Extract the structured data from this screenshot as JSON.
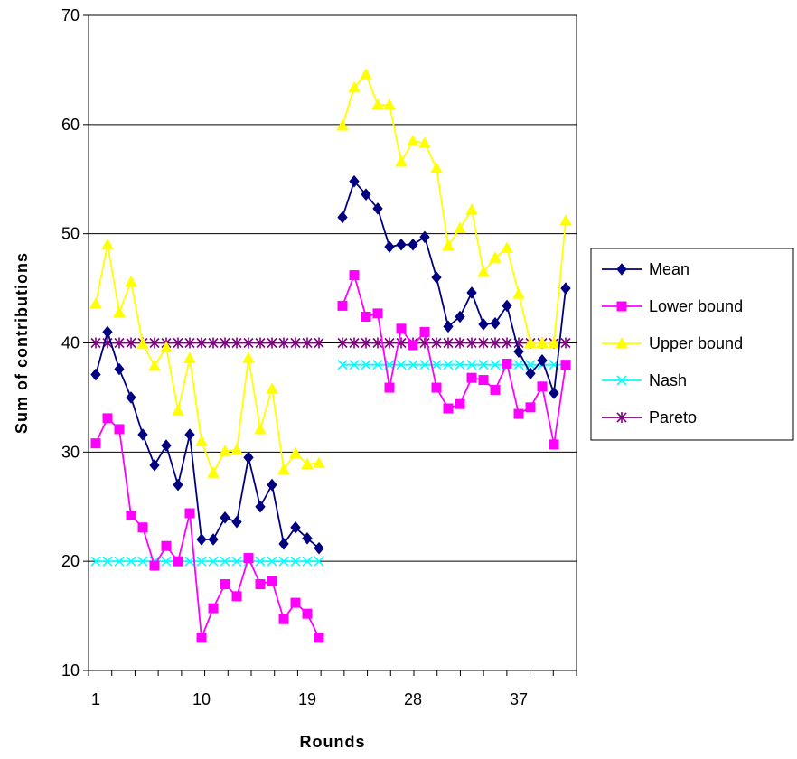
{
  "chart_data": {
    "type": "line",
    "title": "",
    "xlabel": "Rounds",
    "ylabel": "Sum of contributions",
    "ylim": [
      10,
      70
    ],
    "yticks": [
      10,
      20,
      30,
      40,
      50,
      60,
      70
    ],
    "xlim": [
      1,
      41
    ],
    "xticks": [
      1,
      10,
      19,
      28,
      37
    ],
    "grid": "horizontal",
    "legend": "right",
    "x": [
      1,
      2,
      3,
      4,
      5,
      6,
      7,
      8,
      9,
      10,
      11,
      12,
      13,
      14,
      15,
      16,
      17,
      18,
      19,
      20,
      21,
      22,
      23,
      24,
      25,
      26,
      27,
      28,
      29,
      30,
      31,
      32,
      33,
      34,
      35,
      36,
      37,
      38,
      39,
      40,
      41
    ],
    "series": [
      {
        "name": "Mean",
        "color": "#000080",
        "marker": "diamond",
        "values": [
          37.1,
          41.0,
          37.6,
          35.0,
          31.6,
          28.8,
          30.6,
          27.0,
          31.6,
          22.0,
          22.0,
          24.0,
          23.6,
          29.5,
          25.0,
          27.0,
          21.6,
          23.1,
          22.1,
          21.2,
          null,
          51.5,
          54.8,
          53.6,
          52.3,
          48.8,
          49.0,
          49.0,
          49.7,
          46.0,
          41.5,
          42.4,
          44.6,
          41.7,
          41.8,
          43.4,
          39.2,
          37.2,
          38.4,
          35.4,
          45.0
        ]
      },
      {
        "name": "Lower bound",
        "color": "#FF00FF",
        "marker": "square",
        "values": [
          30.8,
          33.1,
          32.1,
          24.2,
          23.1,
          19.6,
          21.4,
          20.0,
          24.4,
          13.0,
          15.7,
          17.9,
          16.8,
          20.3,
          17.9,
          18.2,
          14.7,
          16.2,
          15.2,
          13.0,
          null,
          43.4,
          46.2,
          42.4,
          42.7,
          35.9,
          41.3,
          39.8,
          41.0,
          35.9,
          34.0,
          34.4,
          36.8,
          36.6,
          35.7,
          38.1,
          33.5,
          34.1,
          36.0,
          30.7,
          38.0
        ]
      },
      {
        "name": "Upper bound",
        "color": "#FFFF00",
        "marker": "triangle",
        "values": [
          43.6,
          49.0,
          42.8,
          45.6,
          39.9,
          37.9,
          39.6,
          33.8,
          38.6,
          31.0,
          28.1,
          30.1,
          30.2,
          38.6,
          32.1,
          35.8,
          28.4,
          29.9,
          28.9,
          29.0,
          null,
          59.9,
          63.4,
          64.6,
          61.8,
          61.8,
          56.6,
          58.5,
          58.3,
          56.0,
          48.9,
          50.5,
          52.2,
          46.5,
          47.8,
          48.7,
          44.5,
          40.0,
          40.0,
          40.0,
          51.2
        ]
      },
      {
        "name": "Nash",
        "color": "#00FFFF",
        "marker": "x",
        "values": [
          20,
          20,
          20,
          20,
          20,
          20,
          20,
          20,
          20,
          20,
          20,
          20,
          20,
          20,
          20,
          20,
          20,
          20,
          20,
          20,
          null,
          38,
          38,
          38,
          38,
          38,
          38,
          38,
          38,
          38,
          38,
          38,
          38,
          38,
          38,
          38,
          38,
          38,
          38,
          38,
          38
        ]
      },
      {
        "name": "Pareto",
        "color": "#800080",
        "marker": "star",
        "values": [
          40,
          40,
          40,
          40,
          40,
          40,
          40,
          40,
          40,
          40,
          40,
          40,
          40,
          40,
          40,
          40,
          40,
          40,
          40,
          40,
          null,
          40,
          40,
          40,
          40,
          40,
          40,
          40,
          40,
          40,
          40,
          40,
          40,
          40,
          40,
          40,
          40,
          40,
          40,
          40,
          40
        ]
      }
    ]
  }
}
